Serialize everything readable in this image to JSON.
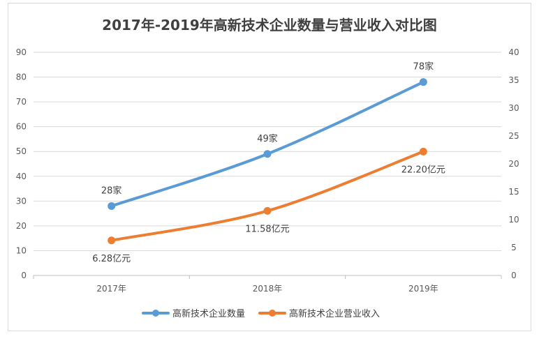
{
  "chart_data": {
    "type": "line",
    "title": "2017年-2019年高新技术企业数量与营业收入对比图",
    "categories": [
      "2017年",
      "2018年",
      "2019年"
    ],
    "y_left": {
      "ticks": [
        "0",
        "10",
        "20",
        "30",
        "40",
        "50",
        "60",
        "70",
        "80",
        "90"
      ],
      "ylim": [
        0,
        90
      ]
    },
    "y_right": {
      "ticks": [
        "0",
        "5",
        "10",
        "15",
        "20",
        "25",
        "30",
        "35",
        "40"
      ],
      "ylim": [
        0,
        40
      ]
    },
    "grid": true,
    "legend_position": "bottom",
    "series": [
      {
        "name": "高新技术企业数量",
        "axis": "left",
        "color": "#5B9BD5",
        "values": [
          28,
          49,
          78
        ],
        "labels": [
          "28家",
          "49家",
          "78家"
        ]
      },
      {
        "name": "高新技术企业营业收入",
        "axis": "right",
        "color": "#ED7D31",
        "values": [
          6.28,
          11.58,
          22.2
        ],
        "labels": [
          "6.28亿元",
          "11.58亿元",
          "22.20亿元"
        ]
      }
    ]
  }
}
